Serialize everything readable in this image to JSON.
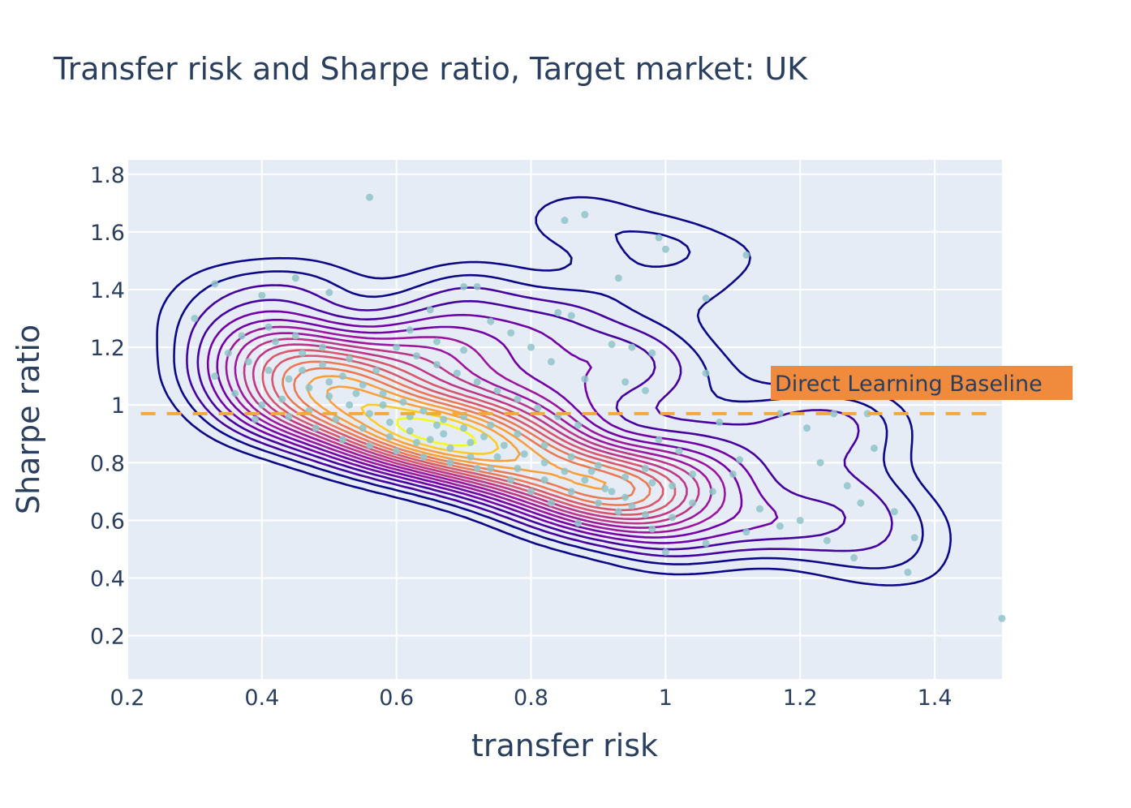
{
  "chart_data": {
    "type": "scatter",
    "title": "Transfer risk and Sharpe ratio, Target market: UK",
    "xlabel": "transfer risk",
    "ylabel": "Sharpe ratio",
    "xlim": [
      0.2,
      1.5
    ],
    "ylim": [
      0.05,
      1.85
    ],
    "xticks": [
      0.2,
      0.4,
      0.6,
      0.8,
      1,
      1.2,
      1.4
    ],
    "xtick_labels": [
      "0.2",
      "0.4",
      "0.6",
      "0.8",
      "1",
      "1.2",
      "1.4"
    ],
    "yticks": [
      0.2,
      0.4,
      0.6,
      0.8,
      1,
      1.2,
      1.4,
      1.6,
      1.8
    ],
    "ytick_labels": [
      "0.2",
      "0.4",
      "0.6",
      "0.8",
      "1",
      "1.2",
      "1.4",
      "1.6",
      "1.8"
    ],
    "grid": true,
    "background": "#e5ecf6",
    "scatter_color": "#8fc4c8",
    "baseline": {
      "y": 0.97,
      "label": "Direct Learning Baseline",
      "color": "#f2a93b",
      "label_bg": "#f08a3c"
    },
    "contour": {
      "type": "density-contour",
      "colorscale": [
        "#0d0887",
        "#46039f",
        "#7201a8",
        "#9c179e",
        "#bd3786",
        "#d8576b",
        "#ed7953",
        "#fb9f3a",
        "#fdca26",
        "#f0f921"
      ],
      "levels": 18
    },
    "series": [
      {
        "points": [
          [
            0.33,
            1.42
          ],
          [
            0.56,
            1.72
          ],
          [
            0.45,
            1.44
          ],
          [
            0.5,
            1.39
          ],
          [
            0.4,
            1.38
          ],
          [
            0.7,
            1.41
          ],
          [
            0.72,
            1.41
          ],
          [
            0.65,
            1.33
          ],
          [
            0.85,
            1.64
          ],
          [
            0.88,
            1.66
          ],
          [
            0.84,
            1.32
          ],
          [
            0.86,
            1.31
          ],
          [
            0.99,
            1.58
          ],
          [
            1.0,
            1.54
          ],
          [
            1.12,
            1.52
          ],
          [
            0.93,
            1.44
          ],
          [
            1.06,
            1.37
          ],
          [
            0.95,
            1.2
          ],
          [
            0.98,
            1.18
          ],
          [
            0.92,
            1.21
          ],
          [
            1.06,
            1.11
          ],
          [
            0.97,
            1.05
          ],
          [
            0.88,
            1.09
          ],
          [
            0.94,
            1.08
          ],
          [
            1.17,
            0.97
          ],
          [
            1.21,
            0.92
          ],
          [
            1.25,
            0.97
          ],
          [
            1.3,
            0.97
          ],
          [
            1.31,
            0.85
          ],
          [
            1.23,
            0.8
          ],
          [
            1.27,
            0.72
          ],
          [
            1.29,
            0.66
          ],
          [
            1.34,
            0.63
          ],
          [
            1.37,
            0.54
          ],
          [
            1.36,
            0.42
          ],
          [
            1.5,
            0.26
          ],
          [
            1.28,
            0.47
          ],
          [
            1.24,
            0.53
          ],
          [
            1.2,
            0.6
          ],
          [
            1.14,
            0.64
          ],
          [
            1.17,
            0.58
          ],
          [
            1.12,
            0.56
          ],
          [
            1.06,
            0.52
          ],
          [
            1.0,
            0.49
          ],
          [
            0.98,
            0.57
          ],
          [
            1.01,
            0.61
          ],
          [
            1.04,
            0.66
          ],
          [
            1.07,
            0.7
          ],
          [
            1.1,
            0.76
          ],
          [
            1.11,
            0.81
          ],
          [
            1.08,
            0.94
          ],
          [
            0.98,
            0.73
          ],
          [
            0.95,
            0.65
          ],
          [
            0.92,
            0.7
          ],
          [
            0.89,
            0.77
          ],
          [
            0.87,
            0.59
          ],
          [
            0.83,
            0.66
          ],
          [
            0.8,
            0.7
          ],
          [
            0.77,
            0.74
          ],
          [
            0.74,
            0.78
          ],
          [
            0.71,
            0.82
          ],
          [
            0.68,
            0.85
          ],
          [
            0.65,
            0.88
          ],
          [
            0.62,
            0.91
          ],
          [
            0.59,
            0.94
          ],
          [
            0.56,
            0.97
          ],
          [
            0.53,
            1.0
          ],
          [
            0.5,
            1.03
          ],
          [
            0.47,
            1.06
          ],
          [
            0.44,
            1.09
          ],
          [
            0.41,
            1.12
          ],
          [
            0.38,
            1.15
          ],
          [
            0.35,
            1.18
          ],
          [
            0.3,
            1.3
          ],
          [
            0.42,
            1.22
          ],
          [
            0.46,
            1.18
          ],
          [
            0.49,
            1.14
          ],
          [
            0.52,
            1.1
          ],
          [
            0.55,
            1.07
          ],
          [
            0.58,
            1.04
          ],
          [
            0.61,
            1.01
          ],
          [
            0.64,
            0.98
          ],
          [
            0.67,
            0.95
          ],
          [
            0.7,
            0.92
          ],
          [
            0.73,
            0.89
          ],
          [
            0.76,
            0.86
          ],
          [
            0.79,
            0.83
          ],
          [
            0.82,
            0.8
          ],
          [
            0.85,
            0.77
          ],
          [
            0.88,
            0.74
          ],
          [
            0.91,
            0.71
          ],
          [
            0.94,
            0.68
          ],
          [
            0.97,
            0.62
          ],
          [
            0.6,
            1.2
          ],
          [
            0.63,
            1.17
          ],
          [
            0.66,
            1.14
          ],
          [
            0.69,
            1.11
          ],
          [
            0.72,
            1.08
          ],
          [
            0.75,
            1.05
          ],
          [
            0.78,
            1.02
          ],
          [
            0.81,
            0.99
          ],
          [
            0.84,
            0.96
          ],
          [
            0.87,
            0.93
          ],
          [
            0.48,
            0.92
          ],
          [
            0.52,
            0.88
          ],
          [
            0.56,
            0.86
          ],
          [
            0.6,
            0.84
          ],
          [
            0.64,
            0.82
          ],
          [
            0.68,
            0.8
          ],
          [
            0.72,
            0.78
          ],
          [
            0.44,
            0.96
          ],
          [
            0.4,
            1.0
          ],
          [
            0.36,
            1.04
          ],
          [
            0.39,
            0.95
          ],
          [
            0.43,
            1.02
          ],
          [
            0.47,
            0.98
          ],
          [
            0.51,
            0.95
          ],
          [
            0.55,
            0.92
          ],
          [
            0.59,
            0.89
          ],
          [
            0.63,
            0.87
          ],
          [
            0.67,
            0.9
          ],
          [
            0.71,
            0.87
          ],
          [
            0.75,
            0.82
          ],
          [
            0.78,
            0.78
          ],
          [
            0.82,
            0.74
          ],
          [
            0.86,
            0.7
          ],
          [
            0.9,
            0.66
          ],
          [
            0.93,
            0.63
          ],
          [
            0.57,
            1.12
          ],
          [
            0.53,
            1.16
          ],
          [
            0.49,
            1.2
          ],
          [
            0.45,
            1.24
          ],
          [
            0.41,
            1.27
          ],
          [
            0.37,
            1.24
          ],
          [
            0.33,
            1.1
          ],
          [
            0.74,
            1.29
          ],
          [
            0.77,
            1.25
          ],
          [
            0.8,
            1.2
          ],
          [
            0.83,
            1.15
          ],
          [
            0.62,
            1.26
          ],
          [
            0.66,
            1.22
          ],
          [
            0.7,
            1.19
          ],
          [
            0.46,
            1.12
          ],
          [
            0.5,
            1.08
          ],
          [
            0.54,
            1.04
          ],
          [
            0.58,
            1.0
          ],
          [
            0.62,
            0.96
          ],
          [
            0.66,
            0.93
          ],
          [
            0.7,
            0.96
          ],
          [
            0.74,
            0.93
          ],
          [
            0.78,
            0.9
          ],
          [
            0.82,
            0.86
          ],
          [
            0.86,
            0.82
          ],
          [
            0.9,
            0.79
          ],
          [
            0.94,
            0.75
          ],
          [
            0.97,
            0.78
          ],
          [
            1.01,
            0.72
          ],
          [
            1.04,
            0.76
          ],
          [
            1.02,
            0.84
          ],
          [
            0.99,
            0.88
          ]
        ]
      }
    ]
  }
}
